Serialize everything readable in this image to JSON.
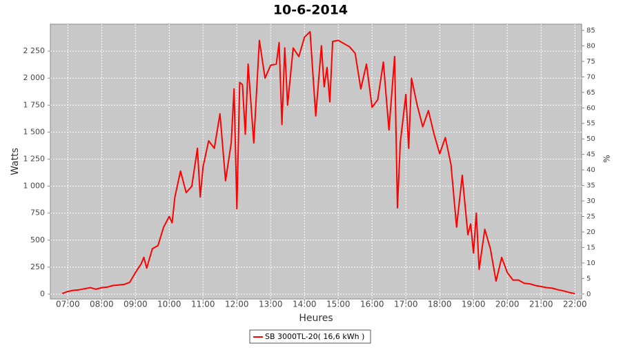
{
  "chart_data": {
    "type": "line",
    "title": "10-6-2014",
    "x_label": "Heures",
    "y_label": "Watts",
    "y2_label": "%",
    "x": [
      "06:50",
      "07:00",
      "07:10",
      "07:20",
      "07:30",
      "07:40",
      "07:50",
      "08:00",
      "08:10",
      "08:20",
      "08:30",
      "08:40",
      "08:50",
      "09:00",
      "09:10",
      "09:15",
      "09:20",
      "09:30",
      "09:40",
      "09:50",
      "10:00",
      "10:05",
      "10:10",
      "10:20",
      "10:30",
      "10:40",
      "10:50",
      "10:55",
      "11:00",
      "11:10",
      "11:20",
      "11:30",
      "11:40",
      "11:50",
      "11:55",
      "12:00",
      "12:05",
      "12:10",
      "12:15",
      "12:20",
      "12:30",
      "12:40",
      "12:50",
      "13:00",
      "13:10",
      "13:15",
      "13:20",
      "13:25",
      "13:30",
      "13:40",
      "13:50",
      "14:00",
      "14:10",
      "14:20",
      "14:30",
      "14:35",
      "14:40",
      "14:45",
      "14:50",
      "15:00",
      "15:10",
      "15:20",
      "15:30",
      "15:40",
      "15:50",
      "16:00",
      "16:10",
      "16:20",
      "16:30",
      "16:40",
      "16:45",
      "16:50",
      "17:00",
      "17:05",
      "17:10",
      "17:20",
      "17:30",
      "17:40",
      "17:50",
      "18:00",
      "18:10",
      "18:20",
      "18:30",
      "18:40",
      "18:50",
      "18:55",
      "19:00",
      "19:05",
      "19:10",
      "19:20",
      "19:30",
      "19:40",
      "19:50",
      "20:00",
      "20:10",
      "20:20",
      "20:30",
      "20:40",
      "20:50",
      "21:00",
      "21:10",
      "21:20",
      "21:30",
      "21:40",
      "21:50",
      "22:00"
    ],
    "series": [
      {
        "name": "SB 3000TL-20( 16,6 kWh )",
        "color": "#ff0000",
        "values": [
          5,
          25,
          35,
          40,
          50,
          60,
          45,
          60,
          65,
          80,
          85,
          90,
          110,
          200,
          280,
          340,
          240,
          420,
          450,
          620,
          720,
          660,
          900,
          1140,
          940,
          1000,
          1350,
          900,
          1180,
          1420,
          1350,
          1670,
          1050,
          1400,
          1900,
          790,
          1960,
          1940,
          1480,
          2130,
          1400,
          2350,
          2000,
          2120,
          2130,
          2330,
          1570,
          2280,
          1750,
          2280,
          2200,
          2380,
          2430,
          1650,
          2300,
          1920,
          2100,
          1780,
          2340,
          2350,
          2320,
          2290,
          2230,
          1900,
          2130,
          1730,
          1800,
          2150,
          1520,
          2200,
          800,
          1400,
          1850,
          1350,
          2000,
          1750,
          1550,
          1700,
          1480,
          1300,
          1450,
          1200,
          620,
          1100,
          550,
          650,
          380,
          750,
          230,
          600,
          420,
          120,
          340,
          200,
          130,
          130,
          100,
          95,
          80,
          70,
          60,
          55,
          40,
          30,
          15,
          5
        ]
      }
    ],
    "xlim": [
      "06:29",
      "22:12"
    ],
    "xticks": [
      "07:00",
      "08:00",
      "09:00",
      "10:00",
      "11:00",
      "12:00",
      "13:00",
      "14:00",
      "15:00",
      "16:00",
      "17:00",
      "18:00",
      "19:00",
      "20:00",
      "21:00",
      "22:00"
    ],
    "ylim": [
      -45,
      2500
    ],
    "yticks": [
      0,
      250,
      500,
      750,
      {
        "value": 1000,
        "label": "1 000"
      },
      {
        "value": 1250,
        "label": "1 250"
      },
      {
        "value": 1500,
        "label": "1 500"
      },
      {
        "value": 1750,
        "label": "1 750"
      },
      {
        "value": 2000,
        "label": "2 000"
      },
      {
        "value": 2250,
        "label": "2 250"
      }
    ],
    "y2lim": [
      -1.6,
      87
    ],
    "y2ticks": [
      0,
      5,
      10,
      15,
      20,
      25,
      30,
      35,
      40,
      45,
      50,
      55,
      60,
      65,
      70,
      75,
      80,
      85
    ],
    "grid": true
  }
}
